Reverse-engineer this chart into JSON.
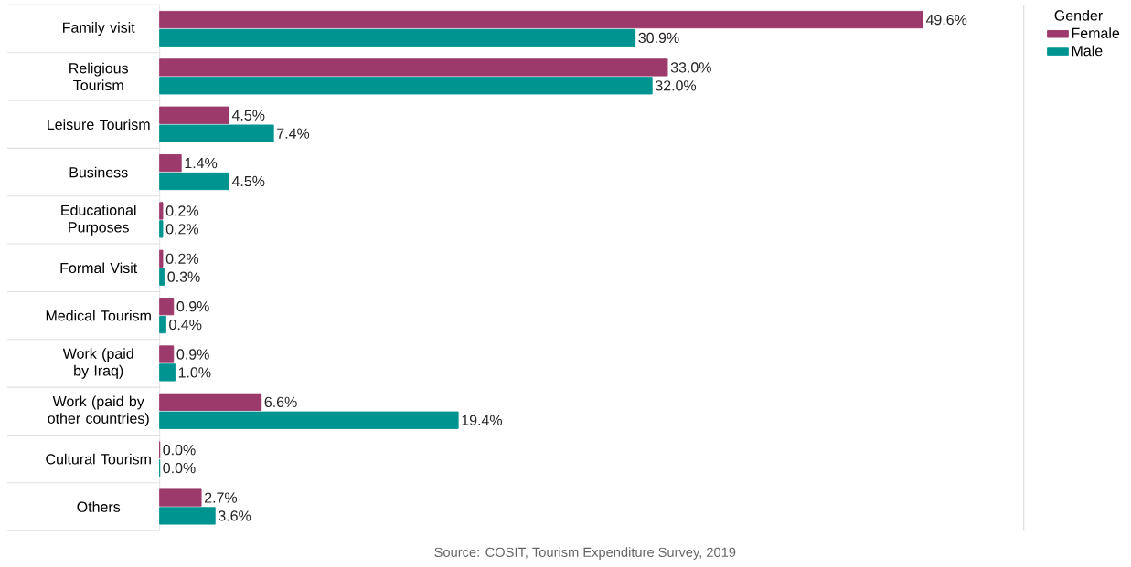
{
  "chart_data": {
    "type": "bar",
    "orientation": "horizontal",
    "legend": "top right",
    "legend_title": "Gender",
    "tick_labels": "y",
    "categories": [
      "Family visit",
      "Religious Tourism",
      "Leisure Tourism",
      "Business",
      "Educational Purposes",
      "Formal Visit",
      "Medical Tourism",
      "Work (paid by Iraq)",
      "Work (paid by other countries)",
      "Cultural Tourism",
      "Others"
    ],
    "series": [
      {
        "name": "Female",
        "color": "#9b3a6b",
        "values": [
          49.6,
          33.0,
          4.5,
          1.4,
          0.2,
          0.2,
          0.9,
          0.9,
          6.6,
          0.0,
          2.7
        ],
        "value_labels": [
          "49.6%",
          "33.0%",
          "4.5%",
          "1.4%",
          "0.2%",
          "0.2%",
          "0.9%",
          "0.9%",
          "6.6%",
          "0.0%",
          "2.7%"
        ]
      },
      {
        "name": "Male",
        "color": "#009490",
        "values": [
          30.9,
          32.0,
          7.4,
          4.5,
          0.2,
          0.3,
          0.4,
          1.0,
          19.4,
          0.0,
          3.6
        ],
        "value_labels": [
          "30.9%",
          "32.0%",
          "7.4%",
          "4.5%",
          "0.2%",
          "0.3%",
          "0.4%",
          "1.0%",
          "19.4%",
          "0.0%",
          "3.6%"
        ]
      }
    ],
    "annotations": [
      "Source: COSIT, Tourism Expenditure Survey, 2019"
    ]
  }
}
